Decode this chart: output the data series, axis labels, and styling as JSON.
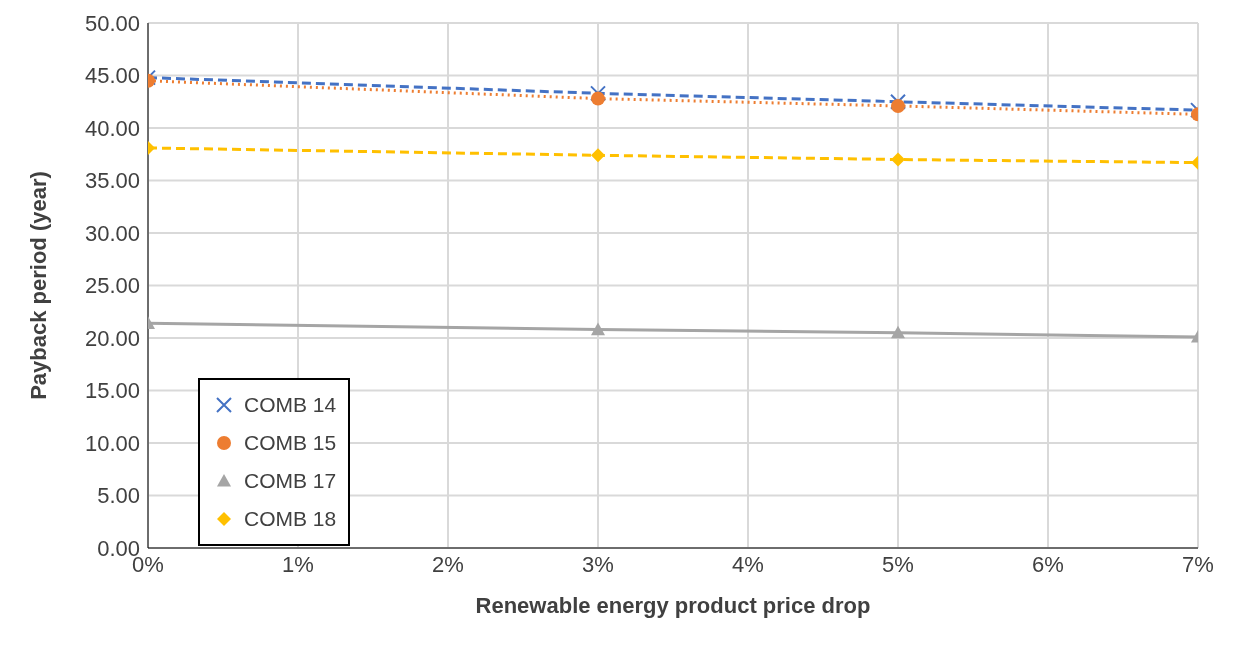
{
  "chart_data": {
    "type": "line",
    "xlabel": "Renewable energy product price drop",
    "ylabel": "Payback period (year)",
    "x": [
      0,
      3,
      5,
      7
    ],
    "series": [
      {
        "name": "COMB 14",
        "color": "#4472c4",
        "values": [
          44.8,
          43.3,
          42.5,
          41.7
        ],
        "marker": "cross",
        "line_style": "dashed"
      },
      {
        "name": "COMB 15",
        "color": "#ed7d31",
        "values": [
          44.5,
          42.8,
          42.1,
          41.3
        ],
        "marker": "circle",
        "line_style": "dotted"
      },
      {
        "name": "COMB 17",
        "color": "#a5a5a5",
        "values": [
          21.4,
          20.8,
          20.5,
          20.1
        ],
        "marker": "triangle",
        "line_style": "solid"
      },
      {
        "name": "COMB 18",
        "color": "#ffc000",
        "values": [
          38.1,
          37.4,
          37.0,
          36.7
        ],
        "marker": "diamond",
        "line_style": "dashed"
      }
    ],
    "xlim": [
      0,
      7
    ],
    "xticks": [
      {
        "value": 0,
        "label": "0%"
      },
      {
        "value": 1,
        "label": "1%"
      },
      {
        "value": 2,
        "label": "2%"
      },
      {
        "value": 3,
        "label": "3%"
      },
      {
        "value": 4,
        "label": "4%"
      },
      {
        "value": 5,
        "label": "5%"
      },
      {
        "value": 6,
        "label": "6%"
      },
      {
        "value": 7,
        "label": "7%"
      }
    ],
    "ylim": [
      0,
      50
    ],
    "yticks": [
      {
        "value": 0,
        "label": "0.00"
      },
      {
        "value": 5,
        "label": "5.00"
      },
      {
        "value": 10,
        "label": "10.00"
      },
      {
        "value": 15,
        "label": "15.00"
      },
      {
        "value": 20,
        "label": "20.00"
      },
      {
        "value": 25,
        "label": "25.00"
      },
      {
        "value": 30,
        "label": "30.00"
      },
      {
        "value": 35,
        "label": "35.00"
      },
      {
        "value": 40,
        "label": "40.00"
      },
      {
        "value": 45,
        "label": "45.00"
      },
      {
        "value": 50,
        "label": "50.00"
      }
    ],
    "grid": true,
    "legend": "bottom left"
  }
}
